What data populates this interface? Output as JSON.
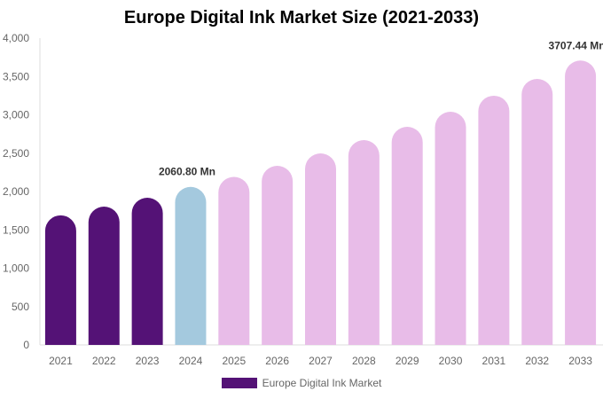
{
  "chart_data": {
    "type": "bar",
    "title": "Europe Digital Ink Market Size (2021-2033)",
    "xlabel": "",
    "ylabel": "",
    "categories": [
      "2021",
      "2022",
      "2023",
      "2024",
      "2025",
      "2026",
      "2027",
      "2028",
      "2029",
      "2030",
      "2031",
      "2032",
      "2033"
    ],
    "series": [
      {
        "name": "Europe Digital Ink Market",
        "values": [
          1690,
          1803,
          1919,
          2060.8,
          2191,
          2335,
          2497,
          2670,
          2844,
          3040,
          3249,
          3468,
          3707.44
        ]
      }
    ],
    "ylim": [
      0,
      4000
    ],
    "yticks": [
      "0",
      "500",
      "1,000",
      "1,500",
      "2,000",
      "2,500",
      "3,000",
      "3,500",
      "4,000"
    ],
    "data_labels": [
      {
        "category": "2024",
        "text": "2060.80 Mn"
      },
      {
        "category": "2033",
        "text": "3707.44 Mn"
      }
    ],
    "colors": {
      "historical": "#541276",
      "base_year": "#a4c9de",
      "forecast": "#e8bce8"
    },
    "grid": false,
    "legend_position": "bottom"
  }
}
